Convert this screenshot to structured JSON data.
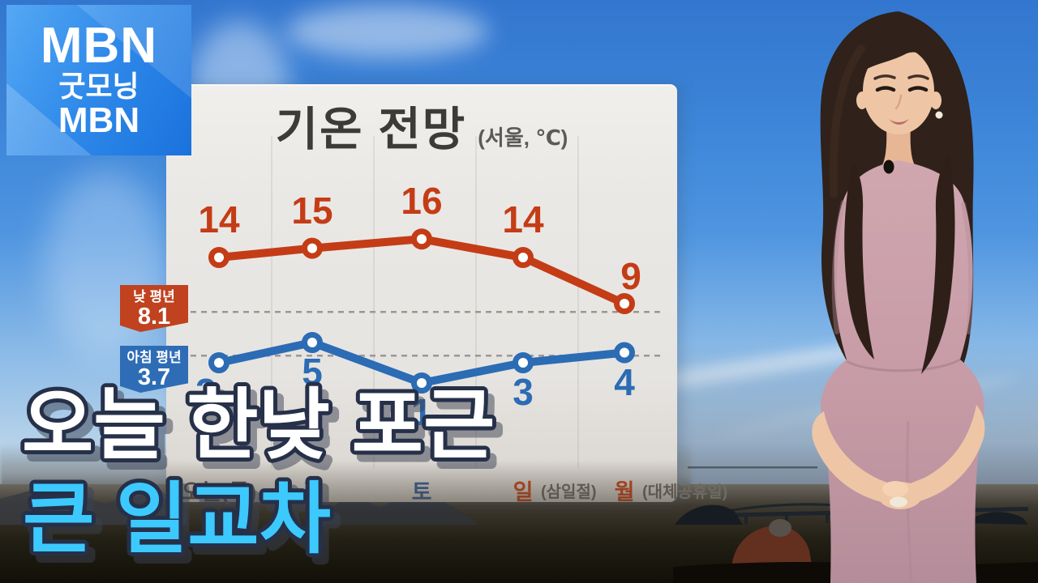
{
  "logo": {
    "brand": "MBN",
    "program_line1": "굿모닝",
    "program_line2": "MBN"
  },
  "chart_data": {
    "type": "line",
    "title": "기온 전망",
    "subtitle": "(서울, ℃)",
    "location": "서울",
    "unit": "℃",
    "categories": [
      {
        "day": "오늘(목)",
        "note": "",
        "color": "#56534d"
      },
      {
        "day": "금",
        "note": "",
        "color": "#56534d"
      },
      {
        "day": "토",
        "note": "",
        "color": "#3e5f92"
      },
      {
        "day": "일",
        "note": "(삼일절)",
        "color": "#c2491f"
      },
      {
        "day": "월",
        "note": "(대체공휴일)",
        "color": "#c2491f"
      }
    ],
    "series": [
      {
        "id": "day-high",
        "color": "#c43c16",
        "values": [
          14,
          15,
          16,
          14,
          9
        ]
      },
      {
        "id": "morning-low",
        "color": "#2b6cb4",
        "values": [
          3,
          5,
          1,
          3,
          4
        ]
      }
    ],
    "reference_lines": [
      {
        "label": "낮 평년",
        "value": 8.1,
        "series": "day-high"
      },
      {
        "label": "아침 평년",
        "value": 3.7,
        "series": "morning-low"
      }
    ],
    "legend_position": "left",
    "grid": "subtle-vertical-columns"
  },
  "badges": [
    {
      "title": "낮 평년",
      "value": "8.1",
      "bg": "#c0421f"
    },
    {
      "title": "아침 평년",
      "value": "3.7",
      "bg": "#2e6db6"
    }
  ],
  "captions": {
    "line1": "오늘 한낮 포근",
    "line2": "큰 일교차",
    "line1_color": "#ffffff",
    "line2_color": "#3cc9fe",
    "outline_color": "#263049"
  }
}
